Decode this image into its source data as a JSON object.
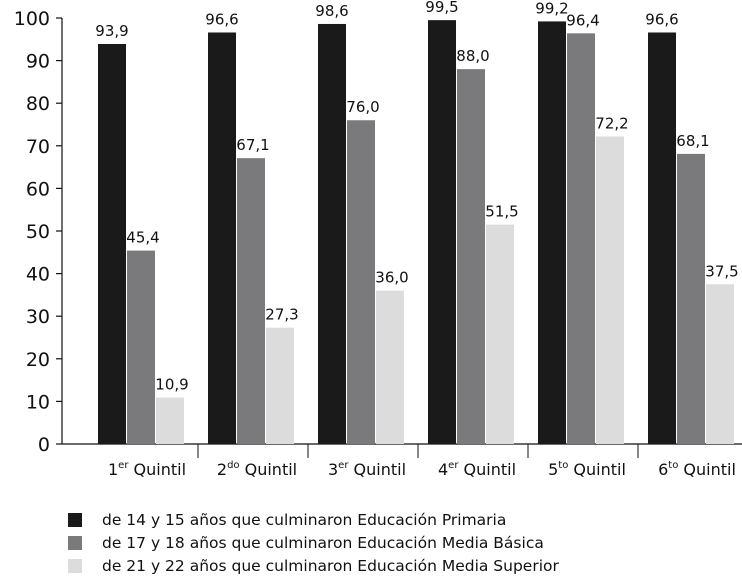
{
  "chart_data": {
    "type": "bar",
    "categories": [
      {
        "num": "1",
        "sup": "er",
        "label": "Quintil"
      },
      {
        "num": "2",
        "sup": "do",
        "label": "Quintil"
      },
      {
        "num": "3",
        "sup": "er",
        "label": "Quintil"
      },
      {
        "num": "4",
        "sup": "er",
        "label": "Quintil"
      },
      {
        "num": "5",
        "sup": "to",
        "label": "Quintil"
      },
      {
        "num": "6",
        "sup": "to",
        "label": "Quintil"
      }
    ],
    "series": [
      {
        "name": "de 14 y 15 años que culminaron Educación Primaria",
        "color": "#1a1a1a",
        "values": [
          93.9,
          96.6,
          98.6,
          99.5,
          99.2,
          96.6
        ],
        "labels": [
          "93,9",
          "96,6",
          "98,6",
          "99,5",
          "99,2",
          "96,6"
        ]
      },
      {
        "name": "de 17 y 18 años que culminaron Educación Media Básica",
        "color": "#7a7a7c",
        "values": [
          45.4,
          67.1,
          76.0,
          88.0,
          96.4,
          68.1
        ],
        "labels": [
          "45,4",
          "67,1",
          "76,0",
          "88,0",
          "96,4",
          "68,1"
        ]
      },
      {
        "name": "de 21 y 22 años que culminaron Educación Media Superior",
        "color": "#dcdcdc",
        "values": [
          10.9,
          27.3,
          36.0,
          51.5,
          72.2,
          37.5
        ],
        "labels": [
          "10,9",
          "27,3",
          "36,0",
          "51,5",
          "72,2",
          "37,5"
        ]
      }
    ],
    "yticks": [
      "0",
      "10",
      "20",
      "30",
      "40",
      "50",
      "60",
      "70",
      "80",
      "90",
      "100"
    ],
    "ylim": [
      0,
      100
    ],
    "grid": false,
    "legend_position": "bottom"
  }
}
